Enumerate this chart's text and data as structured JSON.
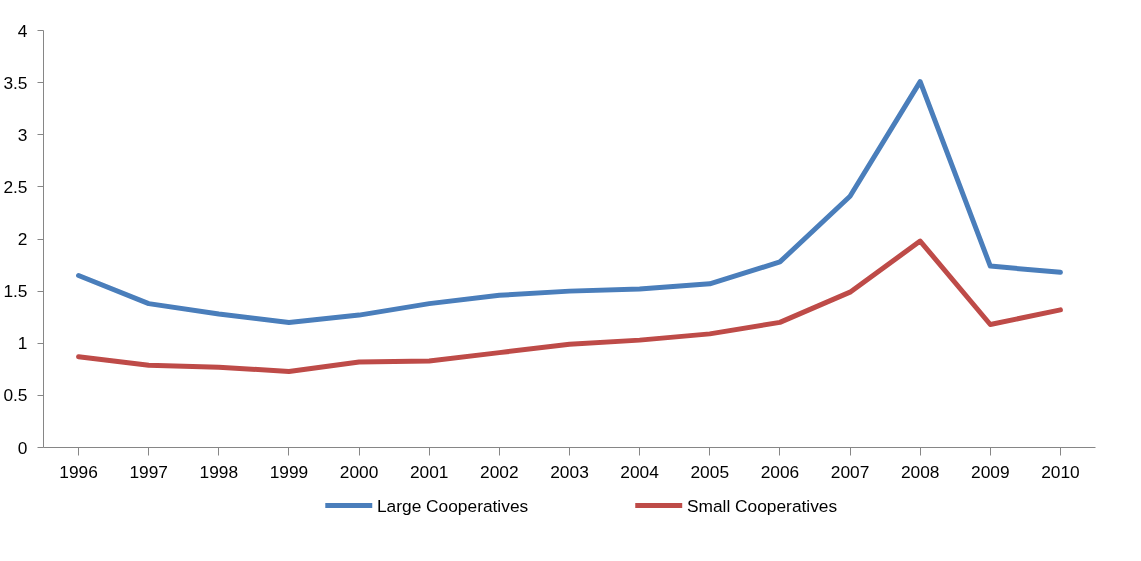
{
  "chart_data": {
    "type": "line",
    "categories": [
      "1996",
      "1997",
      "1998",
      "1999",
      "2000",
      "2001",
      "2002",
      "2003",
      "2004",
      "2005",
      "2006",
      "2007",
      "2008",
      "2009",
      "2010"
    ],
    "series": [
      {
        "name": "Large Cooperatives",
        "color": "#4a7ebb",
        "values": [
          1.65,
          1.38,
          1.28,
          1.2,
          1.27,
          1.38,
          1.46,
          1.5,
          1.52,
          1.57,
          1.78,
          2.41,
          3.51,
          1.74,
          1.68
        ]
      },
      {
        "name": "Small Cooperatives",
        "color": "#be4b48",
        "values": [
          0.87,
          0.79,
          0.77,
          0.73,
          0.82,
          0.83,
          0.91,
          0.99,
          1.03,
          1.09,
          1.2,
          1.49,
          1.98,
          1.18,
          1.32
        ]
      }
    ],
    "ylim": [
      0,
      4
    ],
    "yticks": [
      0,
      0.5,
      1,
      1.5,
      2,
      2.5,
      3,
      3.5,
      4
    ],
    "grid": false,
    "legend": "bottom",
    "marker": "none",
    "line_style": "solid"
  }
}
